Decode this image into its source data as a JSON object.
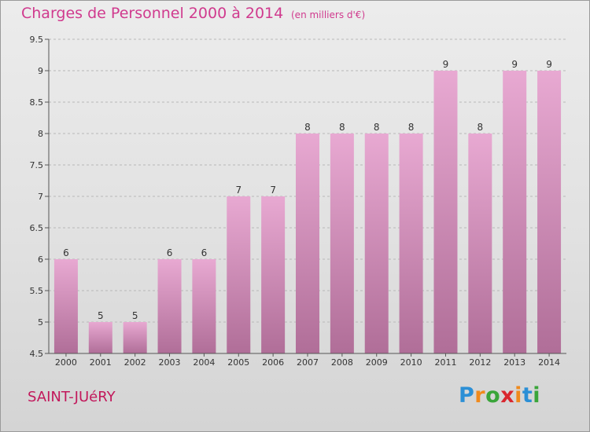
{
  "title": "Charges de Personnel 2000 à 2014",
  "subtitle": "(en milliers d'€)",
  "commune": "SAINT-JUéRY",
  "logo": {
    "letters": [
      "P",
      "r",
      "o",
      "x",
      "i",
      "t",
      "i"
    ],
    "colors": [
      "#2b8fd6",
      "#f08a1c",
      "#3aa53a",
      "#d9262e",
      "#f08a1c",
      "#2b8fd6",
      "#3aa53a"
    ]
  },
  "colors": {
    "bar_top": "#e8a9d2",
    "bar_bottom": "#b06e98",
    "title": "#d03a8e"
  },
  "chart_data": {
    "type": "bar",
    "categories": [
      "2000",
      "2001",
      "2002",
      "2003",
      "2004",
      "2005",
      "2006",
      "2007",
      "2008",
      "2009",
      "2010",
      "2011",
      "2012",
      "2013",
      "2014"
    ],
    "values": [
      6,
      5,
      5,
      6,
      6,
      7,
      7,
      8,
      8,
      8,
      8,
      9,
      8,
      9,
      9
    ],
    "data_labels": [
      "6",
      "5",
      "5",
      "6",
      "6",
      "7",
      "7",
      "8",
      "8",
      "8",
      "8",
      "9",
      "8",
      "9",
      "9"
    ],
    "ylim": [
      4.5,
      9.5
    ],
    "yticks": [
      4.5,
      5,
      5.5,
      6,
      6.5,
      7,
      7.5,
      8,
      8.5,
      9,
      9.5
    ],
    "ytick_labels": [
      "4.5",
      "5",
      "5.5",
      "6",
      "6.5",
      "7",
      "7.5",
      "8",
      "8.5",
      "9",
      "9.5"
    ],
    "grid": "horizontal dashed",
    "legend": "none"
  }
}
